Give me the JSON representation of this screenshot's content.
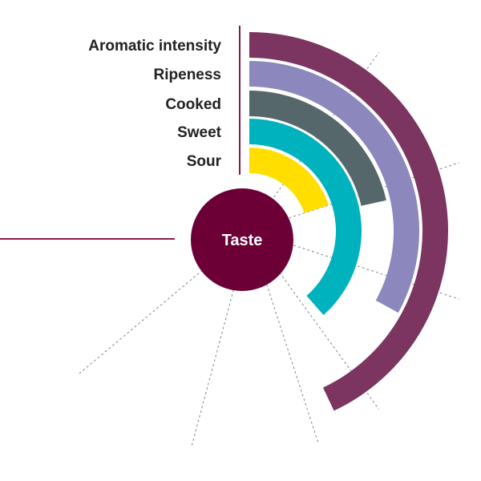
{
  "chart_data": {
    "type": "radial-bar",
    "center_label": "Taste",
    "max_value": 10,
    "categories": [
      "Aromatic intensity",
      "Ripeness",
      "Cooked",
      "Sweet",
      "Sour"
    ],
    "series": [
      {
        "name": "Aromatic intensity",
        "value": 8.6,
        "color": "#7b3560"
      },
      {
        "name": "Ripeness",
        "value": 6.6,
        "color": "#8c88bd"
      },
      {
        "name": "Cooked",
        "value": 4.3,
        "color": "#55676a"
      },
      {
        "name": "Sweet",
        "value": 7.7,
        "color": "#00b2bd"
      },
      {
        "name": "Sour",
        "value": 4.0,
        "color": "#ffde00"
      }
    ],
    "center_color": "#6c0036",
    "accent_line_color": "#8b1a4a",
    "guide_lines": 7
  }
}
